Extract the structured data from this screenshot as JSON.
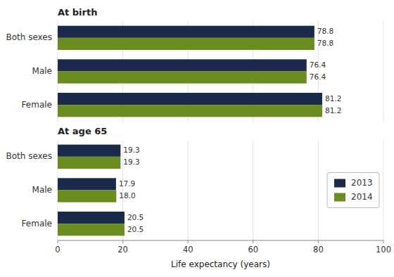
{
  "chart_data": [
    {
      "type": "bar",
      "orientation": "horizontal",
      "title": "At birth",
      "categories": [
        "Both sexes",
        "Male",
        "Female"
      ],
      "series": [
        {
          "name": "2013",
          "color": "#1b2a4a",
          "values": [
            78.8,
            76.4,
            81.2
          ]
        },
        {
          "name": "2014",
          "color": "#6b8c1e",
          "values": [
            78.8,
            76.4,
            81.2
          ]
        }
      ],
      "xlim": [
        0,
        100
      ],
      "xticks": [
        0,
        20,
        40,
        60,
        80,
        100
      ],
      "grid": true,
      "data_labels": true,
      "tick_labels": "y"
    },
    {
      "type": "bar",
      "orientation": "horizontal",
      "title": "At age 65",
      "xlabel": "Life expectancy (years)",
      "categories": [
        "Both sexes",
        "Male",
        "Female"
      ],
      "series": [
        {
          "name": "2013",
          "color": "#1b2a4a",
          "values": [
            19.3,
            17.9,
            20.5
          ]
        },
        {
          "name": "2014",
          "color": "#6b8c1e",
          "values": [
            19.3,
            18.0,
            20.5
          ],
          "value_labels": [
            "19.3",
            "18.0",
            "20.5"
          ]
        }
      ],
      "xlim": [
        0,
        100
      ],
      "xticks": [
        0,
        20,
        40,
        60,
        80,
        100
      ],
      "grid": true,
      "data_labels": true,
      "legend": "right"
    }
  ]
}
